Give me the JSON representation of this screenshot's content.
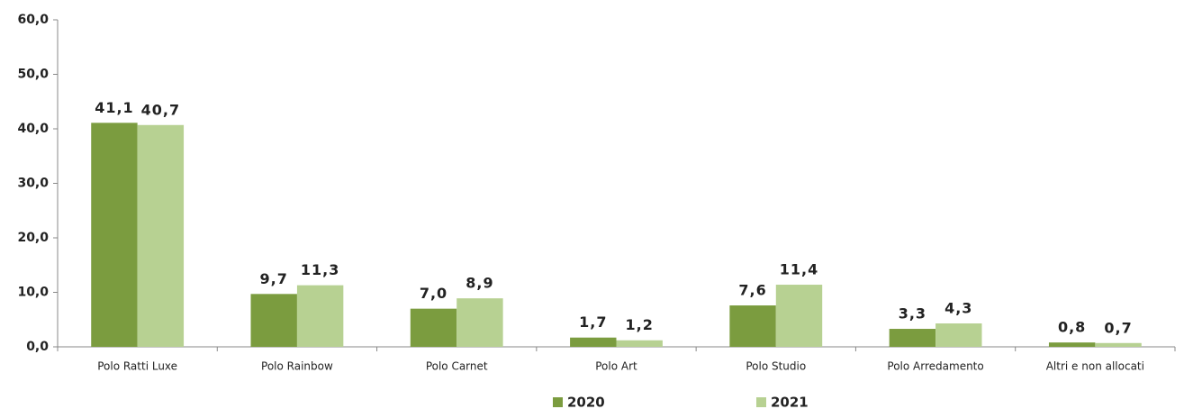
{
  "chart_data": {
    "type": "bar",
    "categories": [
      "Polo Ratti Luxe",
      "Polo Rainbow",
      "Polo Carnet",
      "Polo Art",
      "Polo Studio",
      "Polo Arredamento",
      "Altri e non allocati"
    ],
    "series": [
      {
        "name": "2020",
        "color": "#7b9c3f",
        "values": [
          41.1,
          9.7,
          7.0,
          1.7,
          7.6,
          3.3,
          0.8
        ],
        "value_labels": [
          "41,1",
          "9,7",
          "7,0",
          "1,7",
          "7,6",
          "3,3",
          "0,8"
        ]
      },
      {
        "name": "2021",
        "color": "#b7d192",
        "values": [
          40.7,
          11.3,
          8.9,
          1.2,
          11.4,
          4.3,
          0.7
        ],
        "value_labels": [
          "40,7",
          "11,3",
          "8,9",
          "1,2",
          "11,4",
          "4,3",
          "0,7"
        ]
      }
    ],
    "ylim": [
      0,
      60
    ],
    "yticks": [
      {
        "value": 0,
        "label": "0,0"
      },
      {
        "value": 10,
        "label": "10,0"
      },
      {
        "value": 20,
        "label": "20,0"
      },
      {
        "value": 30,
        "label": "30,0"
      },
      {
        "value": 40,
        "label": "40,0"
      },
      {
        "value": 50,
        "label": "50,0"
      },
      {
        "value": 60,
        "label": "60,0"
      }
    ],
    "legend": "bottom"
  }
}
